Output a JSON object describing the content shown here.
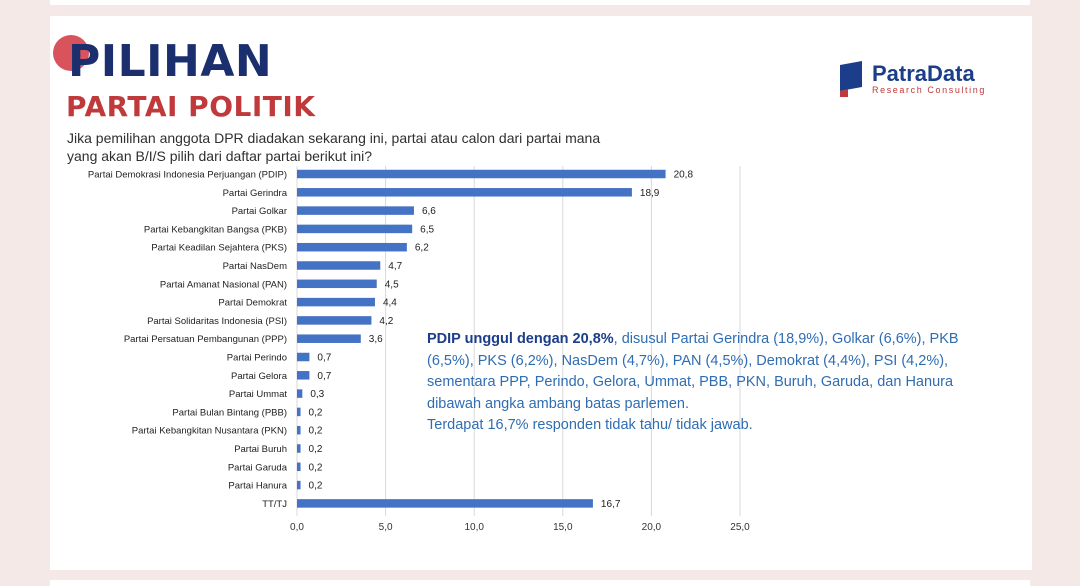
{
  "header": {
    "title_line1": "PILIHAN",
    "title_line2": "PARTAI POLITIK",
    "question": "Jika pemilihan anggota DPR diadakan sekarang ini, partai atau calon dari partai mana yang akan B/I/S pilih dari daftar partai berikut ini?"
  },
  "logo": {
    "name": "PatraData",
    "tagline": "Research Consulting",
    "icon": "patradata-logo-icon"
  },
  "colors": {
    "bar": "#4472c4",
    "title_blue": "#1b2f6e",
    "title_red": "#c0393b",
    "callout_text": "#2f6db3"
  },
  "chart_data": {
    "type": "bar",
    "orientation": "horizontal",
    "categories": [
      "Partai Demokrasi Indonesia Perjuangan (PDIP)",
      "Partai Gerindra",
      "Partai Golkar",
      "Partai Kebangkitan Bangsa (PKB)",
      "Partai Keadilan Sejahtera (PKS)",
      "Partai NasDem",
      "Partai Amanat Nasional (PAN)",
      "Partai Demokrat",
      "Partai Solidaritas Indonesia (PSI)",
      "Partai Persatuan Pembangunan (PPP)",
      "Partai Perindo",
      "Partai Gelora",
      "Partai Ummat",
      "Partai Bulan Bintang (PBB)",
      "Partai Kebangkitan Nusantara (PKN)",
      "Partai Buruh",
      "Partai Garuda",
      "Partai Hanura",
      "TT/TJ"
    ],
    "values": [
      20.8,
      18.9,
      6.6,
      6.5,
      6.2,
      4.7,
      4.5,
      4.4,
      4.2,
      3.6,
      0.7,
      0.7,
      0.3,
      0.2,
      0.2,
      0.2,
      0.2,
      0.2,
      16.7
    ],
    "value_labels": [
      "20,8",
      "18,9",
      "6,6",
      "6,5",
      "6,2",
      "4,7",
      "4,5",
      "4,4",
      "4,2",
      "3,6",
      "0,7",
      "0,7",
      "0,3",
      "0,2",
      "0,2",
      "0,2",
      "0,2",
      "0,2",
      "16,7"
    ],
    "xlim": [
      0,
      25
    ],
    "xticks": [
      0,
      5,
      10,
      15,
      20,
      25
    ],
    "xtick_labels": [
      "0,0",
      "5,0",
      "10,0",
      "15,0",
      "20,0",
      "25,0"
    ],
    "grid": true,
    "legend": "none"
  },
  "callout": {
    "bold": "PDIP unggul dengan 20,8%",
    "text": ", disusul Partai Gerindra (18,9%), Golkar (6,6%), PKB (6,5%), PKS (6,2%), NasDem (4,7%), PAN (4,5%), Demokrat (4,4%), PSI (4,2%), sementara PPP, Perindo, Gelora, Ummat, PBB, PKN, Buruh, Garuda, dan Hanura dibawah angka ambang batas parlemen.",
    "note": "Terdapat 16,7% responden tidak tahu/ tidak jawab."
  }
}
